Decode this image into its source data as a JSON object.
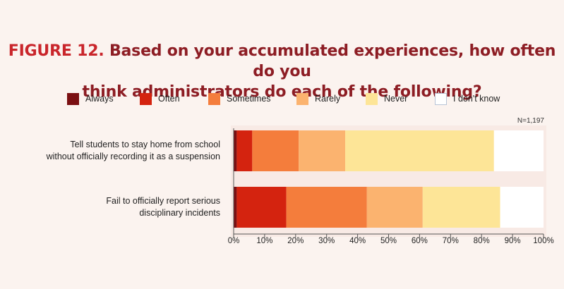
{
  "title": {
    "figure": "FIGURE 12.",
    "line1": "Based on your accumulated experiences, how often do you",
    "line2": "think administrators do each of the following?"
  },
  "note": "N=1,197",
  "chart_data": {
    "type": "bar",
    "orientation": "horizontal",
    "stacked": true,
    "title": "Based on your accumulated experiences, how often do you think administrators do each of the following?",
    "categories": [
      "Tell students to stay home from school without officially recording it as a suspension",
      "Fail to officially report serious disciplinary incidents"
    ],
    "category_lines": [
      [
        "Tell students to stay home from school",
        "without officially recording it as a suspension"
      ],
      [
        "Fail to officially report serious",
        "disciplinary incidents"
      ]
    ],
    "series": [
      {
        "name": "Always",
        "values": [
          1,
          1
        ],
        "color": "#7a0f12"
      },
      {
        "name": "Often",
        "values": [
          5,
          16
        ],
        "color": "#d4230f"
      },
      {
        "name": "Sometimes",
        "values": [
          15,
          26
        ],
        "color": "#f47d3c"
      },
      {
        "name": "Rarely",
        "values": [
          15,
          18
        ],
        "color": "#fbb36f"
      },
      {
        "name": "Never",
        "values": [
          48,
          25
        ],
        "color": "#fde597"
      },
      {
        "name": "I don't know",
        "values": [
          16,
          14
        ],
        "color": "#ffffff"
      }
    ],
    "xlim": [
      0,
      100
    ],
    "xticks": [
      "0%",
      "10%",
      "20%",
      "30%",
      "40%",
      "50%",
      "60%",
      "70%",
      "80%",
      "90%",
      "100%"
    ],
    "legend_position": "top",
    "grid": false
  }
}
